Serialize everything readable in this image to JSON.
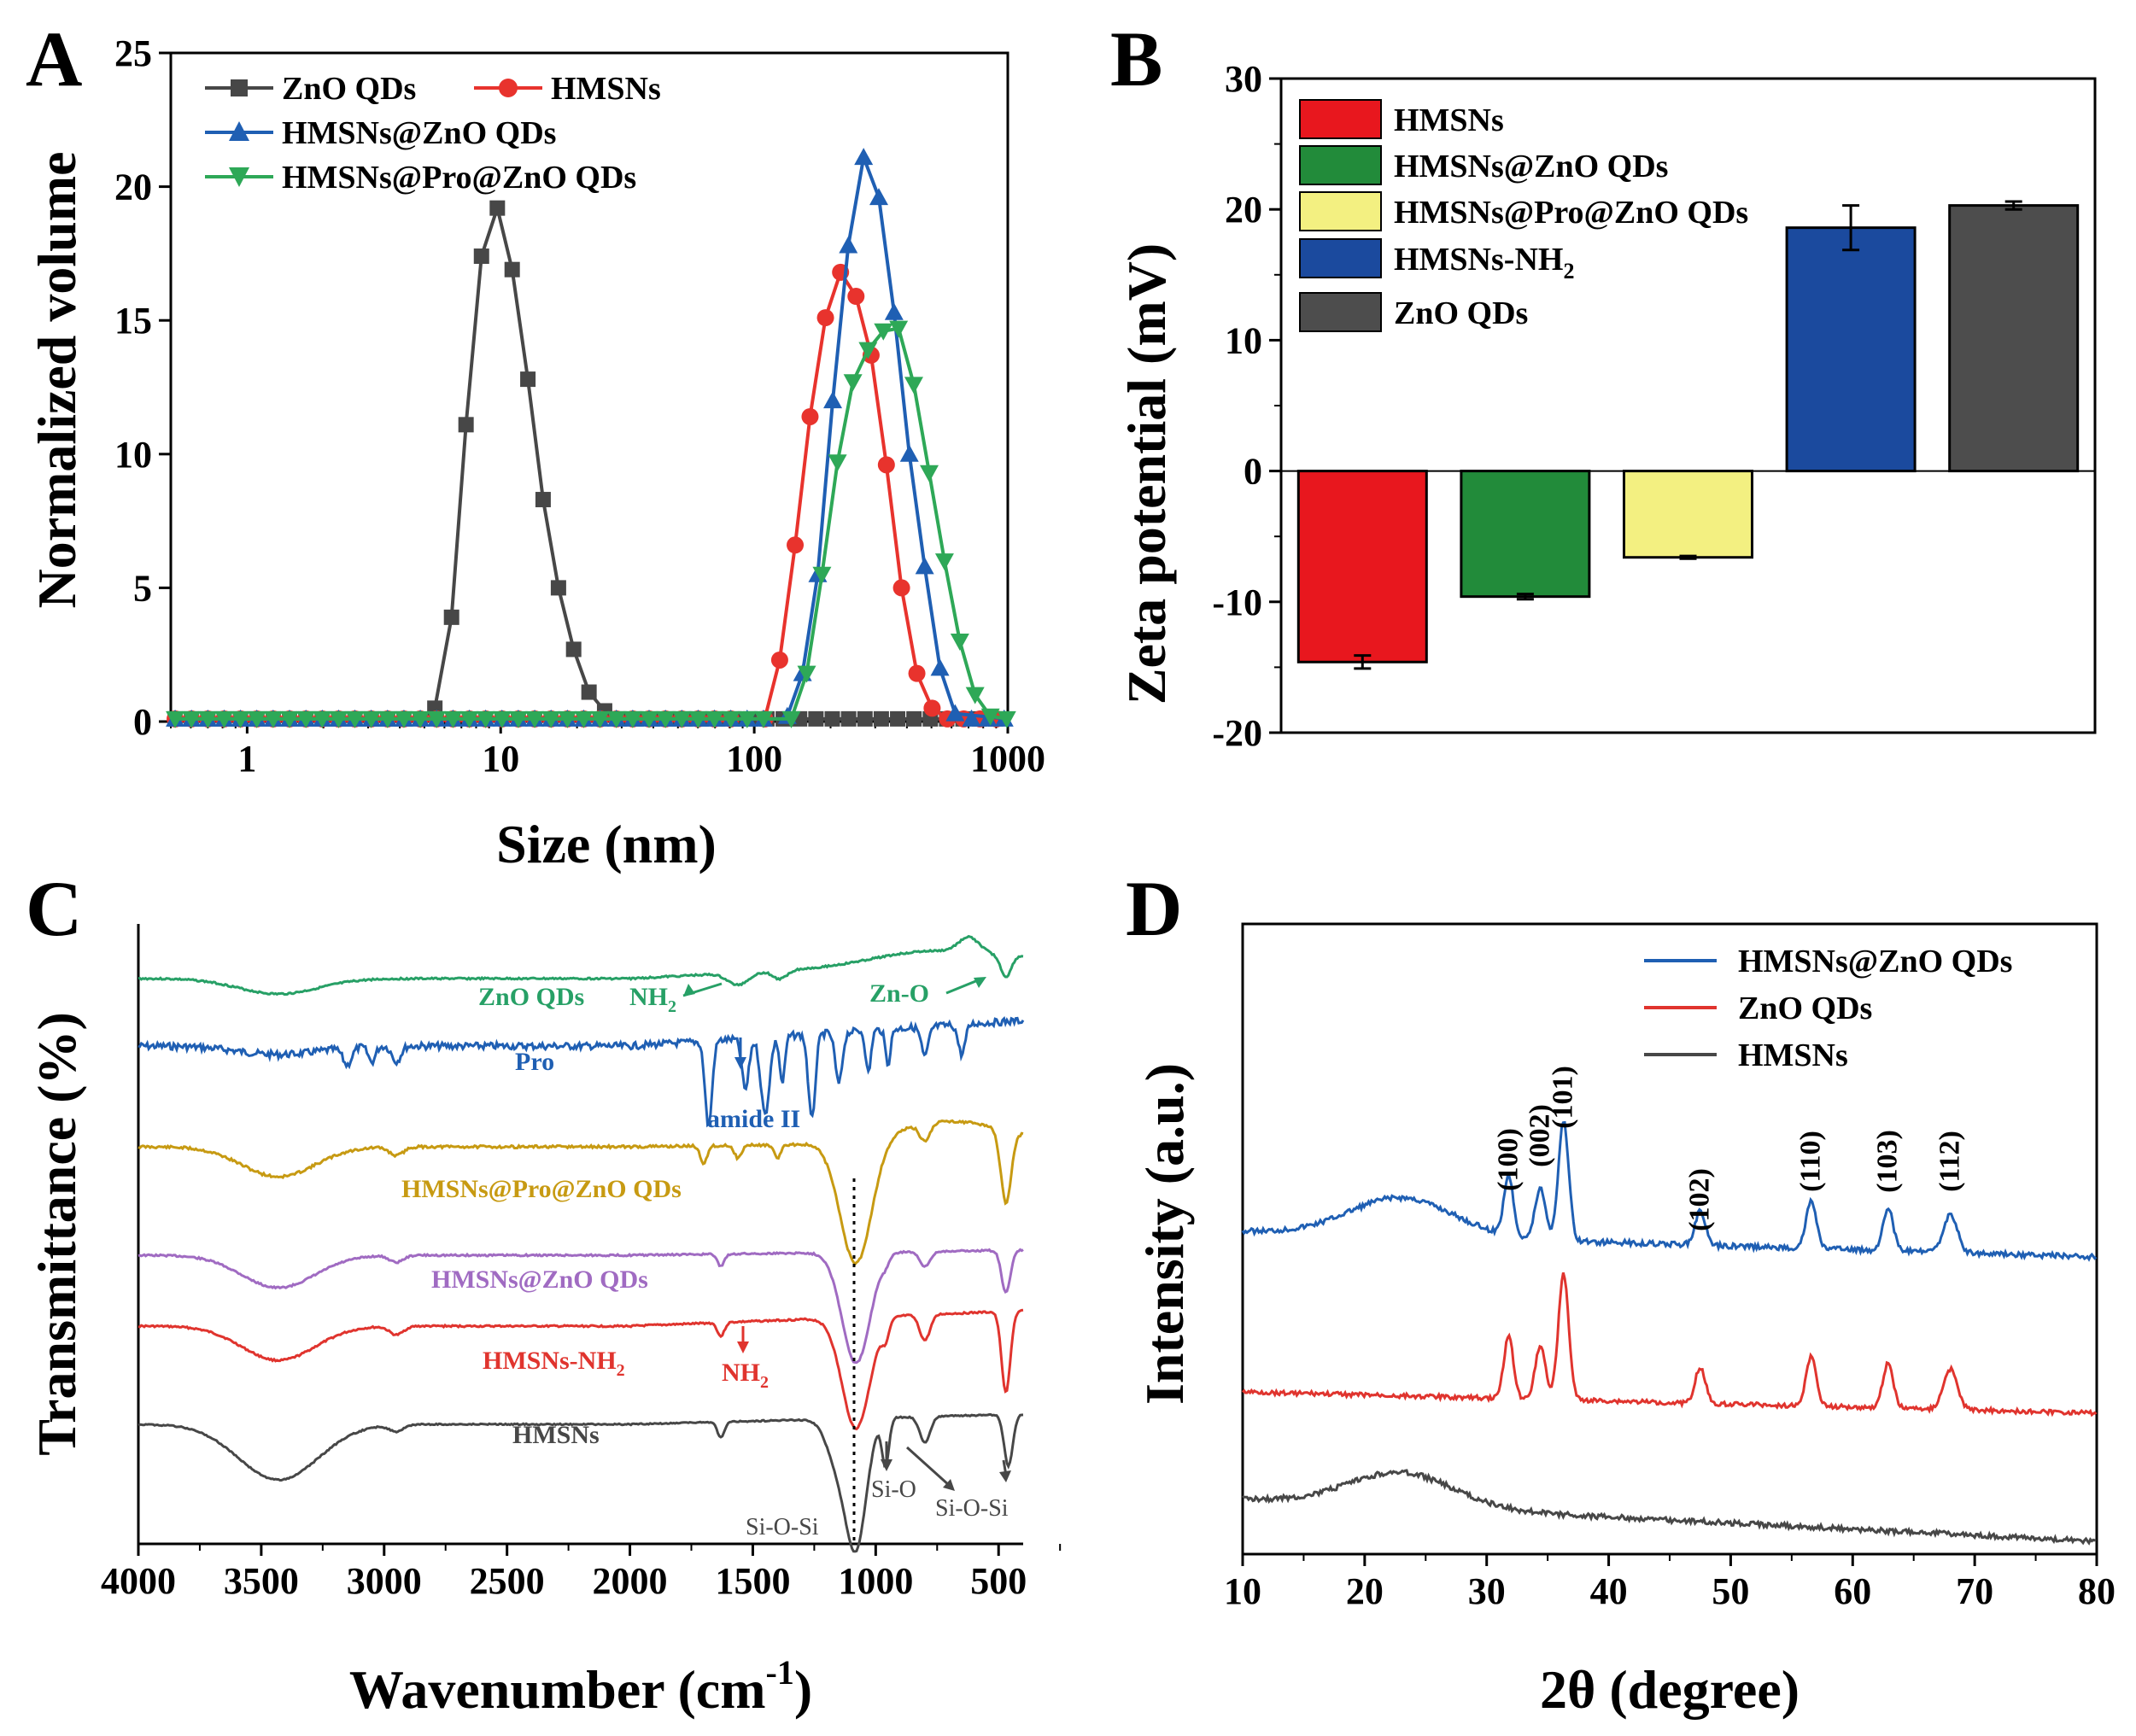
{
  "panels": {
    "a": "A",
    "b": "B",
    "c": "C",
    "d": "D"
  },
  "chart_data": [
    {
      "panel": "A",
      "type": "line",
      "xlabel": "Size (nm)",
      "ylabel": "Normalized volume",
      "xscale": "log",
      "xlim": [
        0.5,
        1000
      ],
      "ylim": [
        0,
        25
      ],
      "xticks": [
        1,
        10,
        100,
        1000
      ],
      "xtick_labels": [
        "1",
        "10",
        "100",
        "1000"
      ],
      "yticks": [
        0,
        5,
        10,
        15,
        20,
        25
      ],
      "legend_position": "top-left",
      "series": [
        {
          "name": "ZnO QDs",
          "color": "#474747",
          "marker": "square",
          "x": [
            5.5,
            6.4,
            7.3,
            8.4,
            9.7,
            11.1,
            12.8,
            14.7,
            16.9,
            19.4,
            22.3,
            25.7,
            29.5
          ],
          "y": [
            0.5,
            3.9,
            11.1,
            17.4,
            19.2,
            16.9,
            12.8,
            8.3,
            5.0,
            2.7,
            1.1,
            0.4,
            0.1
          ]
        },
        {
          "name": "HMSNs",
          "color": "#e8332d",
          "marker": "circle",
          "x": [
            110,
            126,
            145,
            166,
            191,
            219,
            252,
            289,
            332,
            381,
            438,
            503,
            578
          ],
          "y": [
            0.1,
            2.3,
            6.6,
            11.4,
            15.1,
            16.8,
            15.9,
            13.7,
            9.6,
            5.0,
            1.8,
            0.5,
            0.1
          ]
        },
        {
          "name": "HMSNs@ZnO QDs",
          "color": "#1f5fb3",
          "marker": "triangle-up",
          "x": [
            135,
            155,
            178,
            204,
            235,
            270,
            310,
            356,
            409,
            470,
            540,
            620
          ],
          "y": [
            0.2,
            1.8,
            5.5,
            12.0,
            17.8,
            21.1,
            19.6,
            15.3,
            10.0,
            5.8,
            2.0,
            0.3
          ]
        },
        {
          "name": "HMSNs@Pro@ZnO QDs",
          "color": "#2ea857",
          "marker": "triangle-down",
          "x": [
            140,
            161,
            185,
            213,
            245,
            281,
            323,
            371,
            426,
            490,
            563,
            647,
            743,
            854
          ],
          "y": [
            0.1,
            1.8,
            5.5,
            9.7,
            12.7,
            13.9,
            14.6,
            14.7,
            12.6,
            9.3,
            6.0,
            3.0,
            1.0,
            0.2
          ]
        }
      ]
    },
    {
      "panel": "B",
      "type": "bar",
      "xlabel": "",
      "ylabel": "Zeta potential (mV)",
      "ylim": [
        -20,
        30
      ],
      "yticks": [
        -20,
        -10,
        0,
        10,
        20,
        30
      ],
      "legend_position": "top-left",
      "categories": [
        "HMSNs",
        "HMSNs@ZnO QDs",
        "HMSNs@Pro@ZnO QDs",
        "HMSNs-NH2",
        "ZnO QDs"
      ],
      "legend_labels": [
        "HMSNs",
        "HMSNs@ZnO QDs",
        "HMSNs@Pro@ZnO QDs",
        "HMSNs-NH",
        "ZnO QDs"
      ],
      "legend_subscript": "2",
      "values": [
        -14.6,
        -9.6,
        -6.6,
        18.6,
        20.3
      ],
      "errors": [
        0.5,
        0.2,
        0.1,
        1.7,
        0.3
      ],
      "colors": [
        "#e8171e",
        "#228b3a",
        "#f3f081",
        "#1b4a9e",
        "#4d4d4d"
      ]
    },
    {
      "panel": "C",
      "type": "line",
      "xlabel": "Wavenumber (cm",
      "xlabel_sup": "-1",
      "xlabel_end": ")",
      "ylabel": "Transmittance (%)",
      "xlim": [
        4000,
        400
      ],
      "xticks": [
        4000,
        3500,
        3000,
        2500,
        2000,
        1500,
        1000,
        500
      ],
      "xtick_labels": [
        "4000",
        "3500",
        "3000",
        "2500",
        "2000",
        "1500",
        "1000",
        "500"
      ],
      "dotted_line_at": 1080,
      "series": [
        {
          "name": "ZnO QDs",
          "color": "#27a066"
        },
        {
          "name": "Pro",
          "color": "#1f5fb3"
        },
        {
          "name": "HMSNs@Pro@ZnO QDs",
          "color": "#c79a12"
        },
        {
          "name": "HMSNs@ZnO QDs",
          "color": "#a06bc2"
        },
        {
          "name": "HMSNs-NH2",
          "color": "#e0342e"
        },
        {
          "name": "HMSNs",
          "color": "#474747"
        }
      ],
      "annotations": {
        "zno_label": "ZnO QDs",
        "nh2_top": "NH",
        "zno_bond": "Zn-O",
        "pro_label": "Pro",
        "amide": "amide II",
        "hpz_label": "HMSNs@Pro@ZnO QDs",
        "hz_label": "HMSNs@ZnO QDs",
        "nh2_label_base": "HMSNs-NH",
        "nh2_mid": "NH",
        "subscript": "2",
        "hmsns_label": "HMSNs",
        "siosi_left": "Si-O-Si",
        "sio": "Si-O",
        "siosi_right": "Si-O-Si"
      }
    },
    {
      "panel": "D",
      "type": "line",
      "xlabel": "2θ (degree)",
      "ylabel": "Intensity (a.u.)",
      "xlim": [
        10,
        80
      ],
      "xticks": [
        10,
        20,
        30,
        40,
        50,
        60,
        70,
        80
      ],
      "xtick_labels": [
        "10",
        "20",
        "30",
        "40",
        "50",
        "60",
        "70",
        "80"
      ],
      "legend_position": "top-right",
      "series": [
        {
          "name": "HMSNs@ZnO QDs",
          "color": "#1f5fb3"
        },
        {
          "name": "ZnO QDs",
          "color": "#e0342e"
        },
        {
          "name": "HMSNs",
          "color": "#474747"
        }
      ],
      "peak_labels": [
        "(100)",
        "(002)",
        "(101)",
        "(102)",
        "(110)",
        "(103)",
        "(112)"
      ],
      "peak_positions": [
        31.8,
        34.4,
        36.3,
        47.5,
        56.6,
        62.9,
        68.0
      ]
    }
  ]
}
